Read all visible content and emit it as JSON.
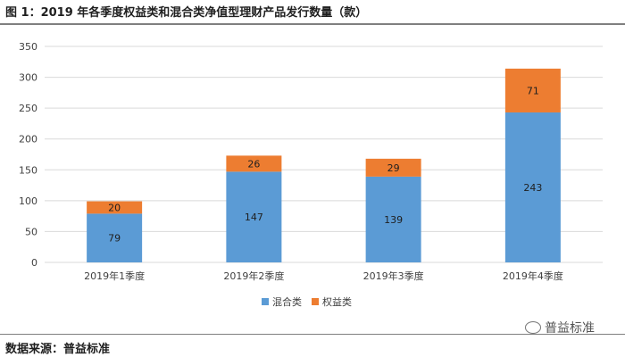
{
  "title": "图 1：2019 年各季度权益类和混合类净值型理财产品发行数量（款）",
  "source_label": "数据来源：普益标准",
  "watermark": "普益标准",
  "colors": {
    "mixed": "#5b9bd5",
    "equity": "#ed7d31",
    "grid": "#d9d9d9",
    "text": "#404040"
  },
  "chart_data": {
    "type": "bar",
    "stacked": true,
    "title": "",
    "xlabel": "",
    "ylabel": "",
    "categories": [
      "2019年1季度",
      "2019年2季度",
      "2019年3季度",
      "2019年4季度"
    ],
    "series": [
      {
        "name": "混合类",
        "values": [
          79,
          147,
          139,
          243
        ]
      },
      {
        "name": "权益类",
        "values": [
          20,
          26,
          29,
          71
        ]
      }
    ],
    "ylim": [
      0,
      350
    ],
    "yticks": [
      0,
      50,
      100,
      150,
      200,
      250,
      300,
      350
    ],
    "grid": true,
    "legend_position": "bottom"
  }
}
